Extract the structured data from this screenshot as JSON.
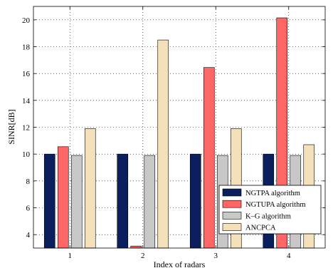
{
  "chart_data": {
    "type": "bar",
    "xlabel": "Index of radars",
    "ylabel": "SINR[dB]",
    "categories": [
      "1",
      "2",
      "3",
      "4"
    ],
    "ylim": [
      3,
      21
    ],
    "yticks": [
      4,
      6,
      8,
      10,
      12,
      14,
      16,
      18,
      20
    ],
    "grid": true,
    "legend_position": "bottom-right",
    "series": [
      {
        "name": "NGTPA algorithm",
        "color": "#0b1f5e",
        "values": [
          10.0,
          10.0,
          10.0,
          10.0
        ]
      },
      {
        "name": "NGTUPA algorithm",
        "color": "#ff6666",
        "values": [
          10.55,
          3.15,
          16.45,
          20.15
        ]
      },
      {
        "name": "K–G algorithm",
        "color": "#c8c8c8",
        "values": [
          9.9,
          9.9,
          9.9,
          9.9
        ]
      },
      {
        "name": "ANCPCA",
        "color": "#f5e0bc",
        "values": [
          11.9,
          18.5,
          11.9,
          10.7
        ]
      }
    ]
  }
}
